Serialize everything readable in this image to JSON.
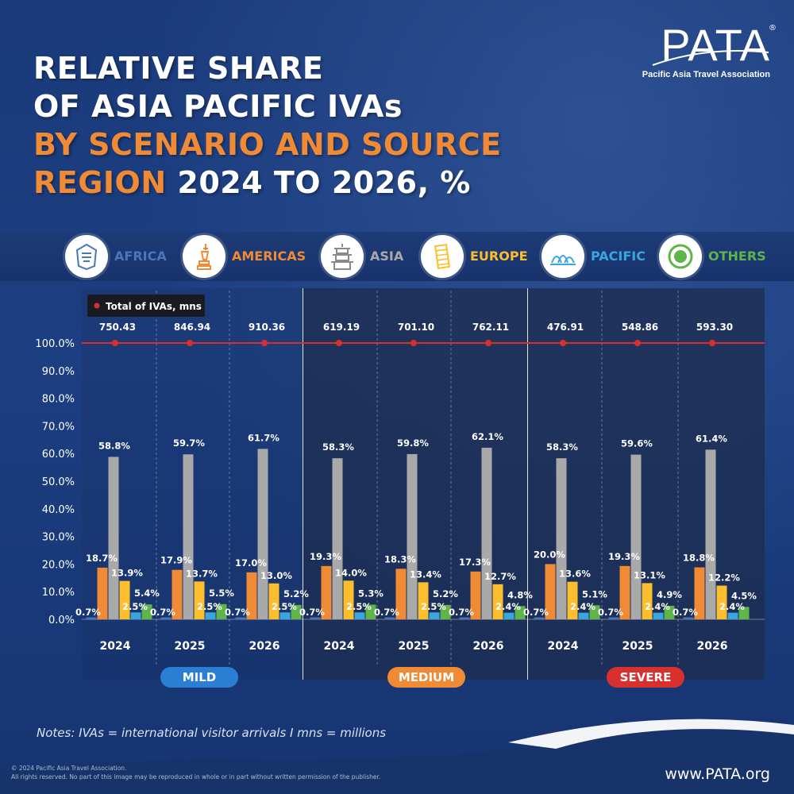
{
  "title": {
    "line1": "RELATIVE SHARE",
    "line2": "OF ASIA PACIFIC IVAs",
    "line3": "BY SCENARIO AND SOURCE",
    "line4_orange": "REGION",
    "line4_white": "2024 TO 2026, %"
  },
  "logo": {
    "text": "PATA",
    "registered": "®",
    "subtitle": "Pacific Asia Travel Association"
  },
  "legend": [
    {
      "label": "AFRICA",
      "color": "#4a76bd",
      "icon": "pharaoh-mask-icon"
    },
    {
      "label": "AMERICAS",
      "color": "#f08a35",
      "icon": "statue-of-liberty-icon"
    },
    {
      "label": "ASIA",
      "color": "#a9a9a9",
      "icon": "pagoda-icon"
    },
    {
      "label": "EUROPE",
      "color": "#fcbe2c",
      "icon": "leaning-tower-icon"
    },
    {
      "label": "PACIFIC",
      "color": "#3aa6dd",
      "icon": "opera-house-icon"
    },
    {
      "label": "OTHERS",
      "color": "#5fb549",
      "icon": "target-circle-icon"
    }
  ],
  "chart_data": {
    "type": "bar",
    "ylim": [
      0,
      100
    ],
    "y_ticks": [
      "0.0%",
      "10.0%",
      "20.0%",
      "30.0%",
      "40.0%",
      "50.0%",
      "60.0%",
      "70.0%",
      "80.0%",
      "90.0%",
      "100.0%"
    ],
    "total_legend_label": "Total of IVAs, mns",
    "total_line_color": "#d9302f",
    "series_names": [
      "AFRICA",
      "AMERICAS",
      "ASIA",
      "EUROPE",
      "PACIFIC",
      "OTHERS"
    ],
    "series_colors": [
      "#4a76bd",
      "#f08a35",
      "#a9a9a9",
      "#fcbe2c",
      "#3aa6dd",
      "#5fb549"
    ],
    "groups": [
      {
        "scenario": "MILD",
        "year": "2024",
        "total": "750.43",
        "values": [
          0.7,
          18.7,
          58.8,
          13.9,
          2.5,
          5.4
        ],
        "labels": [
          "0.7%",
          "18.7%",
          "58.8%",
          "13.9%",
          "2.5%",
          "5.4%"
        ]
      },
      {
        "scenario": "MILD",
        "year": "2025",
        "total": "846.94",
        "values": [
          0.7,
          17.9,
          59.7,
          13.7,
          2.5,
          5.5
        ],
        "labels": [
          "0.7%",
          "17.9%",
          "59.7%",
          "13.7%",
          "2.5%",
          "5.5%"
        ]
      },
      {
        "scenario": "MILD",
        "year": "2026",
        "total": "910.36",
        "values": [
          0.7,
          17.0,
          61.7,
          13.0,
          2.5,
          5.2
        ],
        "labels": [
          "0.7%",
          "17.0%",
          "61.7%",
          "13.0%",
          "2.5%",
          "5.2%"
        ]
      },
      {
        "scenario": "MEDIUM",
        "year": "2024",
        "total": "619.19",
        "values": [
          0.7,
          19.3,
          58.3,
          14.0,
          2.5,
          5.3
        ],
        "labels": [
          "0.7%",
          "19.3%",
          "58.3%",
          "14.0%",
          "2.5%",
          "5.3%"
        ]
      },
      {
        "scenario": "MEDIUM",
        "year": "2025",
        "total": "701.10",
        "values": [
          0.7,
          18.3,
          59.8,
          13.4,
          2.5,
          5.2
        ],
        "labels": [
          "0.7%",
          "18.3%",
          "59.8%",
          "13.4%",
          "2.5%",
          "5.2%"
        ]
      },
      {
        "scenario": "MEDIUM",
        "year": "2026",
        "total": "762.11",
        "values": [
          0.7,
          17.3,
          62.1,
          12.7,
          2.4,
          4.8
        ],
        "labels": [
          "0.7%",
          "17.3%",
          "62.1%",
          "12.7%",
          "2.4%",
          "4.8%"
        ]
      },
      {
        "scenario": "SEVERE",
        "year": "2024",
        "total": "476.91",
        "values": [
          0.7,
          20.0,
          58.3,
          13.6,
          2.4,
          5.1
        ],
        "labels": [
          "0.7%",
          "20.0%",
          "58.3%",
          "13.6%",
          "2.4%",
          "5.1%"
        ]
      },
      {
        "scenario": "SEVERE",
        "year": "2025",
        "total": "548.86",
        "values": [
          0.7,
          19.3,
          59.6,
          13.1,
          2.4,
          4.9
        ],
        "labels": [
          "0.7%",
          "19.3%",
          "59.6%",
          "13.1%",
          "2.4%",
          "4.9%"
        ]
      },
      {
        "scenario": "SEVERE",
        "year": "2026",
        "total": "593.30",
        "values": [
          0.7,
          18.8,
          61.4,
          12.2,
          2.4,
          4.5
        ],
        "labels": [
          "0.7%",
          "18.8%",
          "61.4%",
          "12.2%",
          "2.4%",
          "4.5%"
        ]
      }
    ],
    "scenarios": [
      {
        "label": "MILD",
        "color": "#2a7fd4"
      },
      {
        "label": "MEDIUM",
        "color": "#f08a35"
      },
      {
        "label": "SEVERE",
        "color": "#d9302f"
      }
    ]
  },
  "notes": "Notes: IVAs = international visitor arrivals I mns = millions",
  "copyright_line1": "© 2024 Pacific Asia Travel Association.",
  "copyright_line2": "All rights reserved. No part of this image may be reproduced in whole or in part without written permission of the publisher.",
  "website": "www.PATA.org"
}
